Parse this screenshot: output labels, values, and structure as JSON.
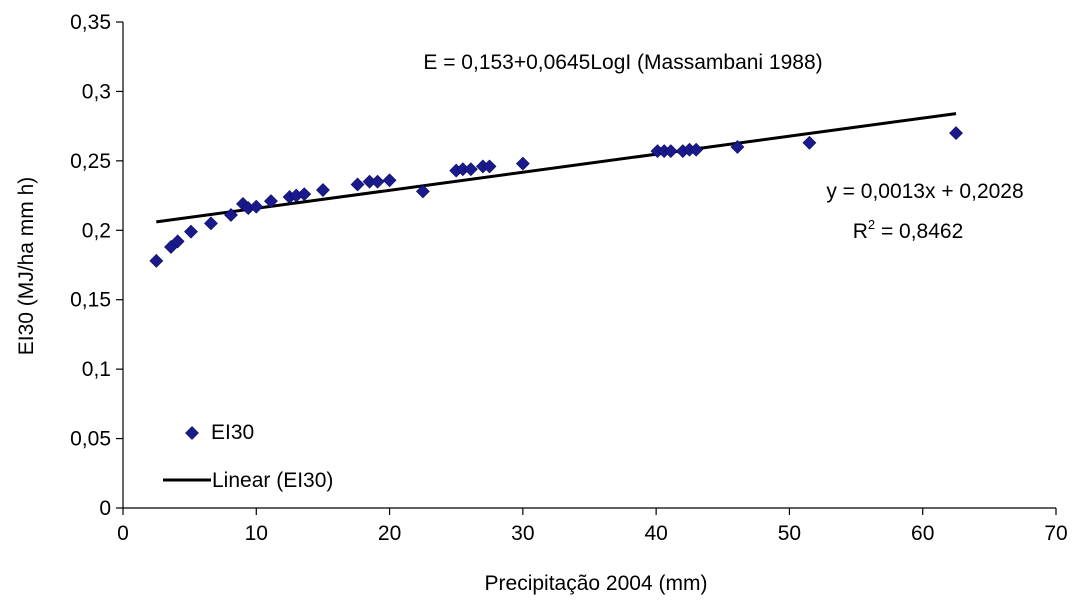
{
  "chart_data": {
    "type": "scatter",
    "title": "",
    "xlabel": "Precipitação 2004 (mm)",
    "ylabel": "EI30  (MJ/ha mm h)",
    "xlim": [
      0,
      70
    ],
    "ylim": [
      0,
      0.35
    ],
    "x_ticks": [
      0,
      10,
      20,
      30,
      40,
      50,
      60,
      70
    ],
    "y_ticks": [
      0,
      0.05,
      0.1,
      0.15,
      0.2,
      0.25,
      0.3,
      0.35
    ],
    "x_tick_labels": [
      "0",
      "10",
      "20",
      "30",
      "40",
      "50",
      "60",
      "70"
    ],
    "y_tick_labels": [
      "0",
      "0,05",
      "0,1",
      "0,15",
      "0,2",
      "0,25",
      "0,3",
      "0,35"
    ],
    "grid": false,
    "legend_position": "bottom-left",
    "series": [
      {
        "name": "EI30",
        "kind": "scatter",
        "marker": "diamond",
        "color": "#1a1a8c",
        "points": [
          [
            2.5,
            0.178
          ],
          [
            3.6,
            0.188
          ],
          [
            4.1,
            0.192
          ],
          [
            5.1,
            0.199
          ],
          [
            6.6,
            0.205
          ],
          [
            8.1,
            0.211
          ],
          [
            9.0,
            0.219
          ],
          [
            9.4,
            0.216
          ],
          [
            10.0,
            0.217
          ],
          [
            11.1,
            0.221
          ],
          [
            12.5,
            0.224
          ],
          [
            13.0,
            0.225
          ],
          [
            13.6,
            0.226
          ],
          [
            15.0,
            0.229
          ],
          [
            17.6,
            0.233
          ],
          [
            18.5,
            0.235
          ],
          [
            19.1,
            0.235
          ],
          [
            20.0,
            0.236
          ],
          [
            22.5,
            0.228
          ],
          [
            25.0,
            0.243
          ],
          [
            25.5,
            0.244
          ],
          [
            26.1,
            0.244
          ],
          [
            27.0,
            0.246
          ],
          [
            27.5,
            0.246
          ],
          [
            30.0,
            0.248
          ],
          [
            40.1,
            0.257
          ],
          [
            40.6,
            0.257
          ],
          [
            41.1,
            0.257
          ],
          [
            42.0,
            0.257
          ],
          [
            42.5,
            0.258
          ],
          [
            43.0,
            0.258
          ],
          [
            46.1,
            0.26
          ],
          [
            51.5,
            0.263
          ],
          [
            62.5,
            0.27
          ]
        ]
      },
      {
        "name": "Linear (EI30)",
        "kind": "line",
        "color": "#000000",
        "slope": 0.0013,
        "intercept": 0.2028,
        "x_range": [
          2.5,
          62.5
        ]
      }
    ],
    "annotations": {
      "model": "E = 0,153+0,0645LogI (Massambani 1988)",
      "equation": "y = 0,0013x + 0,2028",
      "r2_prefix": "R",
      "r2_sup": "2",
      "r2_value": " = 0,8462"
    }
  }
}
